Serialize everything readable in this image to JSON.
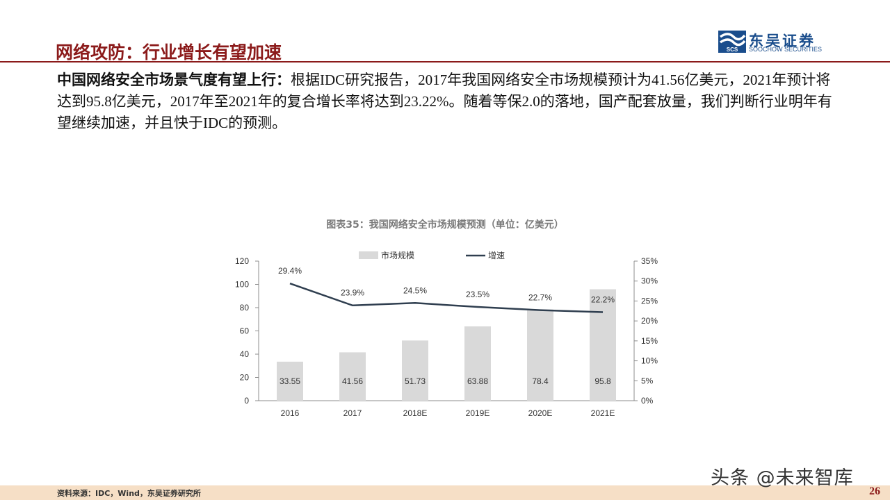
{
  "header": {
    "title": "网络攻防：行业增长有望加速",
    "logo_cn": "东吴证券",
    "logo_en": "SOOCHOW SECURITIES",
    "logo_mark_text": "SCS"
  },
  "intro": {
    "lead": "中国网络安全市场景气度有望上行：",
    "body": "根据IDC研究报告，2017年我国网络安全市场规模预计为41.56亿美元，2021年预计将达到95.8亿美元，2017年至2021年的复合增长率将达到23.22%。随着等保2.0的落地，国产配套放量，我们判断行业明年有望继续加速，并且快于IDC的预测。"
  },
  "chart_caption": "图表35：我国网络安全市场规模预测（单位：亿美元）",
  "chart_data": {
    "type": "bar+line",
    "categories": [
      "2016",
      "2017",
      "2018E",
      "2019E",
      "2020E",
      "2021E"
    ],
    "series": [
      {
        "name": "市场规模",
        "type": "bar",
        "axis": "left",
        "values": [
          33.55,
          41.56,
          51.73,
          63.88,
          78.4,
          95.8
        ],
        "labels": [
          "33.55",
          "41.56",
          "51.73",
          "63.88",
          "78.4",
          "95.8"
        ],
        "color": "#d9d9d9"
      },
      {
        "name": "增速",
        "type": "line",
        "axis": "right",
        "values": [
          29.4,
          23.9,
          24.5,
          23.5,
          22.7,
          22.2
        ],
        "labels": [
          "29.4%",
          "23.9%",
          "24.5%",
          "23.5%",
          "22.7%",
          "22.2%"
        ],
        "color": "#2f3e4f"
      }
    ],
    "y_left": {
      "min": 0,
      "max": 120,
      "ticks": [
        "0",
        "20",
        "40",
        "60",
        "80",
        "100",
        "120"
      ]
    },
    "y_right": {
      "min": 0,
      "max": 35,
      "ticks": [
        "0%",
        "5%",
        "10%",
        "15%",
        "20%",
        "25%",
        "30%",
        "35%"
      ]
    },
    "legend": "top-center",
    "grid": false
  },
  "footer": {
    "source": "资料来源：IDC，Wind，东吴证券研究所",
    "page_number": "26",
    "watermark": "头条 @未来智库"
  }
}
